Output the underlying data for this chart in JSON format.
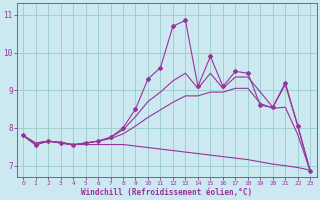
{
  "title": "",
  "xlabel": "Windchill (Refroidissement éolien,°C)",
  "ylabel": "",
  "xlim": [
    -0.5,
    23.5
  ],
  "ylim": [
    6.7,
    11.3
  ],
  "yticks": [
    7,
    8,
    9,
    10,
    11
  ],
  "xticks": [
    0,
    1,
    2,
    3,
    4,
    5,
    6,
    7,
    8,
    9,
    10,
    11,
    12,
    13,
    14,
    15,
    16,
    17,
    18,
    19,
    20,
    21,
    22,
    23
  ],
  "background_color": "#cce8f0",
  "grid_color": "#99cccc",
  "line_color": "#993399",
  "lines": [
    {
      "x": [
        0,
        1,
        2,
        3,
        4,
        5,
        6,
        7,
        8,
        9,
        10,
        11,
        12,
        13,
        14,
        15,
        16,
        17,
        18,
        19,
        20,
        21,
        22,
        23
      ],
      "y": [
        7.8,
        7.55,
        7.65,
        7.6,
        7.55,
        7.6,
        7.65,
        7.75,
        8.0,
        8.5,
        9.3,
        9.6,
        10.7,
        10.85,
        9.1,
        9.9,
        9.1,
        9.5,
        9.45,
        8.6,
        8.55,
        9.2,
        8.05,
        6.85
      ],
      "marker": "D",
      "markersize": 2.0,
      "linewidth": 0.8
    },
    {
      "x": [
        0,
        1,
        2,
        3,
        4,
        5,
        6,
        7,
        8,
        9,
        10,
        11,
        12,
        13,
        14,
        15,
        16,
        17,
        18,
        19,
        20,
        21,
        22,
        23
      ],
      "y": [
        7.8,
        7.55,
        7.65,
        7.6,
        7.55,
        7.6,
        7.65,
        7.75,
        7.95,
        8.3,
        8.7,
        8.95,
        9.25,
        9.45,
        9.05,
        9.45,
        9.05,
        9.35,
        9.35,
        8.95,
        8.55,
        9.15,
        8.05,
        6.85
      ],
      "marker": null,
      "markersize": 0,
      "linewidth": 0.8
    },
    {
      "x": [
        0,
        1,
        2,
        3,
        4,
        5,
        6,
        7,
        8,
        9,
        10,
        11,
        12,
        13,
        14,
        15,
        16,
        17,
        18,
        19,
        20,
        21,
        22,
        23
      ],
      "y": [
        7.8,
        7.6,
        7.65,
        7.62,
        7.56,
        7.6,
        7.65,
        7.72,
        7.84,
        8.05,
        8.28,
        8.48,
        8.68,
        8.85,
        8.85,
        8.95,
        8.95,
        9.05,
        9.05,
        8.65,
        8.52,
        8.55,
        7.82,
        6.85
      ],
      "marker": null,
      "markersize": 0,
      "linewidth": 0.8
    },
    {
      "x": [
        0,
        1,
        2,
        3,
        4,
        5,
        6,
        7,
        8,
        9,
        10,
        11,
        12,
        13,
        14,
        15,
        16,
        17,
        18,
        19,
        20,
        21,
        22,
        23
      ],
      "y": [
        7.8,
        7.6,
        7.65,
        7.62,
        7.56,
        7.56,
        7.56,
        7.56,
        7.56,
        7.52,
        7.48,
        7.44,
        7.4,
        7.36,
        7.32,
        7.28,
        7.24,
        7.2,
        7.16,
        7.1,
        7.04,
        7.0,
        6.95,
        6.88
      ],
      "marker": null,
      "markersize": 0,
      "linewidth": 0.8
    }
  ]
}
